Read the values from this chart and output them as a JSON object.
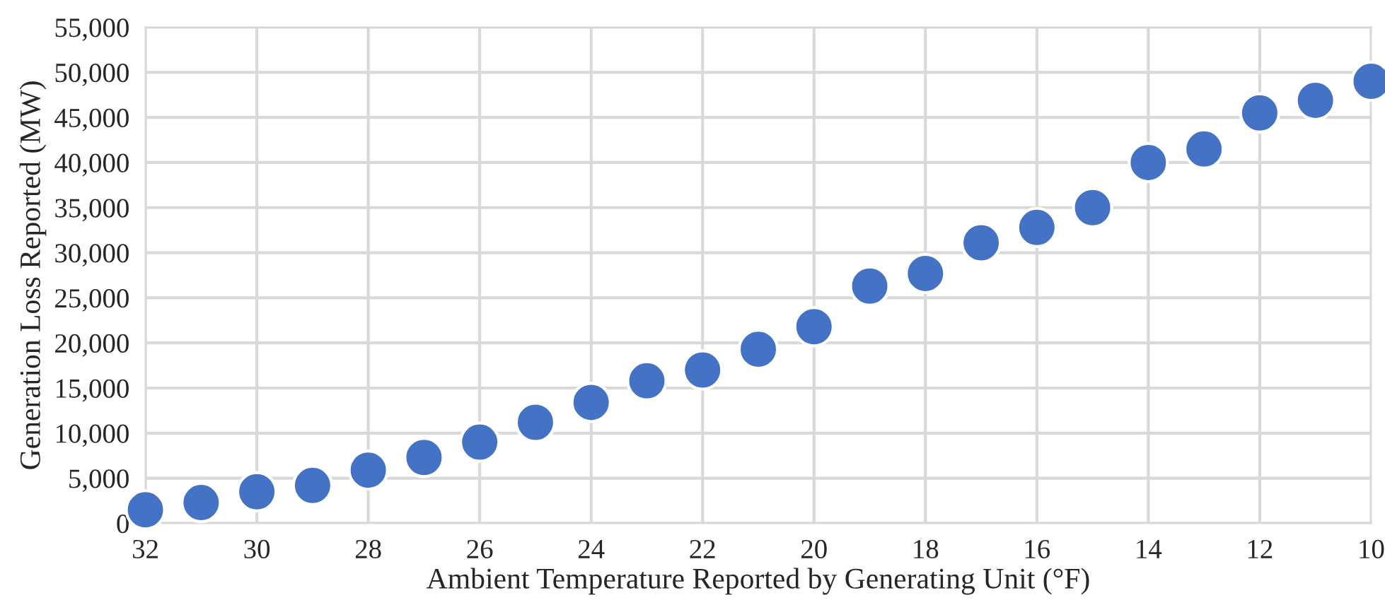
{
  "chart_data": {
    "type": "scatter",
    "xlabel": "Ambient Temperature Reported by Generating Unit (°F)",
    "ylabel": "Generation Loss Reported (MW)",
    "x": [
      32,
      31,
      30,
      29,
      28,
      27,
      26,
      25,
      24,
      23,
      22,
      21,
      20,
      19,
      18,
      17,
      16,
      15,
      14,
      13,
      12,
      11,
      10
    ],
    "series": [
      {
        "color": "#4472c4",
        "values": [
          1500,
          2300,
          3500,
          4200,
          5900,
          7300,
          9000,
          11200,
          13400,
          15800,
          17000,
          19300,
          21800,
          26300,
          27700,
          31100,
          32800,
          35000,
          40000,
          41500,
          45500,
          46900,
          49000
        ]
      }
    ],
    "xlim": [
      32,
      10
    ],
    "xticks": [
      32,
      30,
      28,
      26,
      24,
      22,
      20,
      18,
      16,
      14,
      12,
      10
    ],
    "ylim": [
      0,
      55000
    ],
    "yticks": [
      {
        "value": 0,
        "label": "0"
      },
      {
        "value": 5000,
        "label": "5,000"
      },
      {
        "value": 10000,
        "label": "10,000"
      },
      {
        "value": 15000,
        "label": "15,000"
      },
      {
        "value": 20000,
        "label": "20,000"
      },
      {
        "value": 25000,
        "label": "25,000"
      },
      {
        "value": 30000,
        "label": "30,000"
      },
      {
        "value": 35000,
        "label": "35,000"
      },
      {
        "value": 40000,
        "label": "40,000"
      },
      {
        "value": 45000,
        "label": "45,000"
      },
      {
        "value": 50000,
        "label": "50,000"
      },
      {
        "value": 55000,
        "label": "55,000"
      }
    ],
    "grid": true,
    "marker": "circle"
  }
}
